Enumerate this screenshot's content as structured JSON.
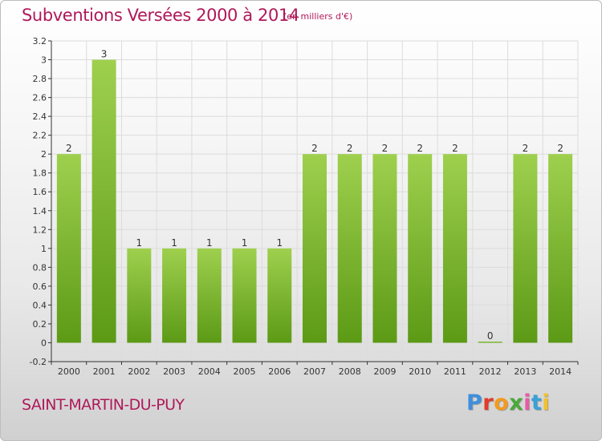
{
  "header": {
    "title": "Subventions Versées 2000 à 2014",
    "subtitle": "(en milliers d'€)"
  },
  "footer": {
    "commune": "SAINT-MARTIN-DU-PUY",
    "logo": "Proxiti",
    "logo_colors": [
      "#3f8fdc",
      "#e13b2a",
      "#f39a1e",
      "#4aa93a",
      "#e85aa7",
      "#3aa0d8",
      "#f2c22b"
    ]
  },
  "chart_data": {
    "type": "bar",
    "categories": [
      "2000",
      "2001",
      "2002",
      "2003",
      "2004",
      "2005",
      "2006",
      "2007",
      "2008",
      "2009",
      "2010",
      "2011",
      "2012",
      "2013",
      "2014"
    ],
    "values": [
      2,
      3,
      1,
      1,
      1,
      1,
      1,
      2,
      2,
      2,
      2,
      2,
      0,
      2,
      2
    ],
    "value_labels": [
      "2",
      "3",
      "1",
      "1",
      "1",
      "1",
      "1",
      "2",
      "2",
      "2",
      "2",
      "2",
      "0",
      "2",
      "2"
    ],
    "ylim": [
      -0.2,
      3.2
    ],
    "yticks": [
      "-0.2",
      "0",
      "0.2",
      "0.4",
      "0.6",
      "0.8",
      "1",
      "1.2",
      "1.4",
      "1.6",
      "1.8",
      "2",
      "2.2",
      "2.4",
      "2.6",
      "2.8",
      "3",
      "3.2"
    ],
    "ytick_values": [
      -0.2,
      0,
      0.2,
      0.4,
      0.6,
      0.8,
      1,
      1.2,
      1.4,
      1.6,
      1.8,
      2,
      2.2,
      2.4,
      2.6,
      2.8,
      3,
      3.2
    ],
    "grid": true,
    "legend": "none",
    "bar_color_top": "#9ed04e",
    "bar_color_bottom": "#5c9a16"
  }
}
